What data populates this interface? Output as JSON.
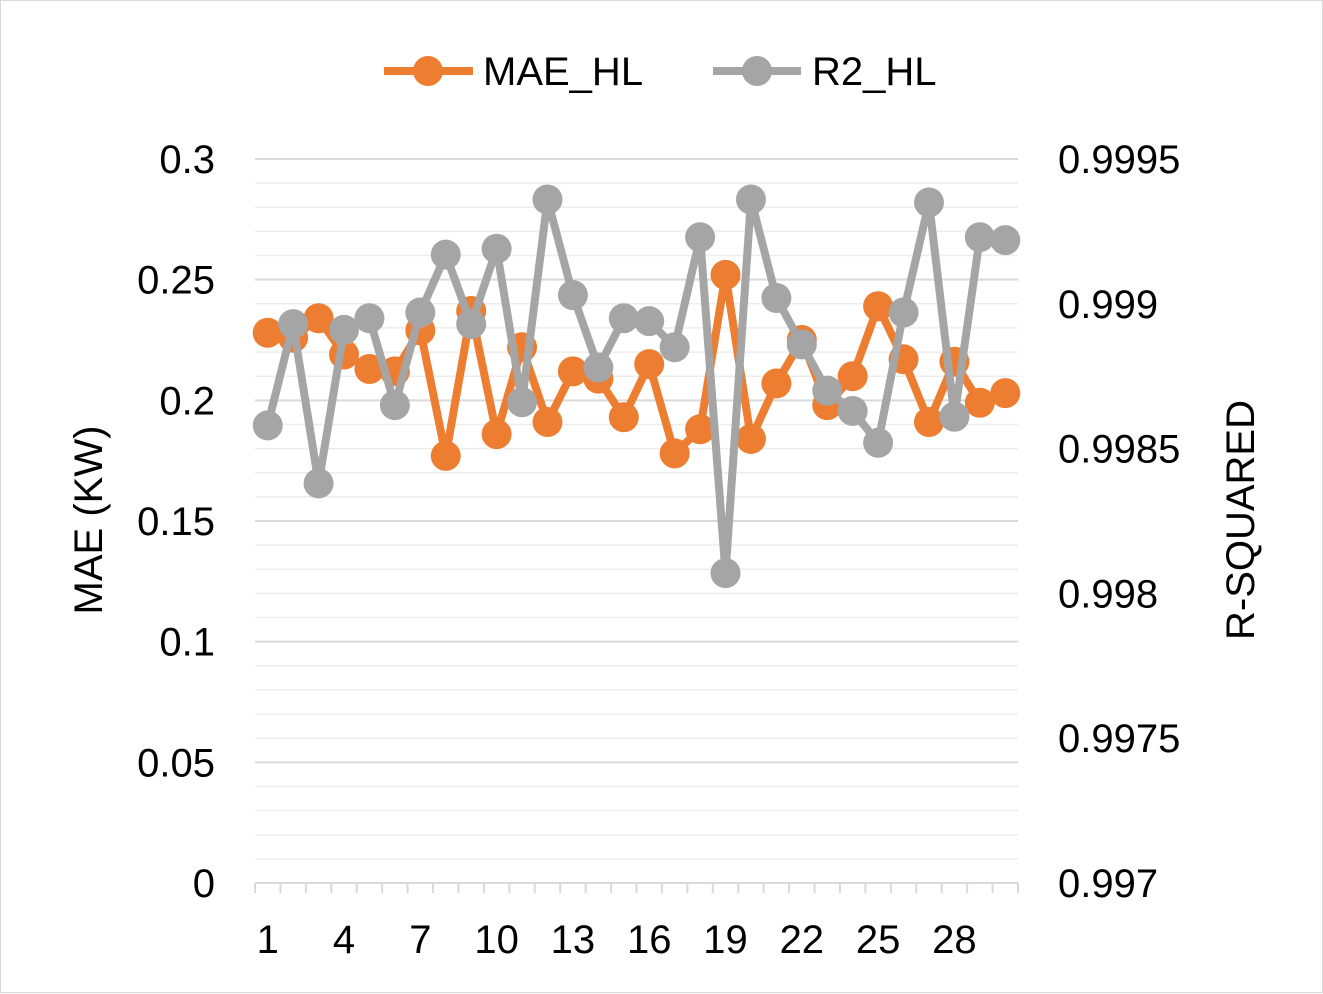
{
  "chart_data": {
    "type": "line",
    "title": "",
    "xlabel": "",
    "ylabel": "MAE (KW)",
    "y2label": "R-SQUARED",
    "ylim": [
      0,
      0.3
    ],
    "y2lim": [
      0.997,
      0.9995
    ],
    "yticks": [
      "0",
      "0.05",
      "0.1",
      "0.15",
      "0.2",
      "0.25",
      "0.3"
    ],
    "y2ticks": [
      "0.997",
      "0.9975",
      "0.998",
      "0.9985",
      "0.999",
      "0.9995"
    ],
    "x": [
      1,
      2,
      3,
      4,
      5,
      6,
      7,
      8,
      9,
      10,
      11,
      12,
      13,
      14,
      15,
      16,
      17,
      18,
      19,
      20,
      21,
      22,
      23,
      24,
      25,
      26,
      27,
      28,
      29,
      30
    ],
    "xtick_labels": [
      "1",
      "4",
      "7",
      "10",
      "13",
      "16",
      "19",
      "22",
      "25",
      "28"
    ],
    "legend_position": "top",
    "grid": true,
    "series": [
      {
        "name": "MAE_HL",
        "axis": "left",
        "color": "#ED7D31",
        "values": [
          0.228,
          0.226,
          0.234,
          0.219,
          0.213,
          0.212,
          0.229,
          0.177,
          0.237,
          0.186,
          0.222,
          0.191,
          0.212,
          0.209,
          0.193,
          0.215,
          0.178,
          0.188,
          0.252,
          0.184,
          0.207,
          0.225,
          0.198,
          0.21,
          0.239,
          0.217,
          0.191,
          0.216,
          0.199,
          0.203
        ]
      },
      {
        "name": "R2_HL",
        "axis": "right",
        "color": "#A5A5A5",
        "values": [
          0.99858,
          0.99893,
          0.99838,
          0.99891,
          0.99895,
          0.99865,
          0.99897,
          0.99917,
          0.99893,
          0.99919,
          0.99866,
          0.99936,
          0.99903,
          0.99878,
          0.99895,
          0.99894,
          0.99885,
          0.99923,
          0.99807,
          0.99936,
          0.99902,
          0.99886,
          0.9987,
          0.99863,
          0.99852,
          0.99897,
          0.99935,
          0.99861,
          0.99923,
          0.99922
        ]
      }
    ]
  }
}
